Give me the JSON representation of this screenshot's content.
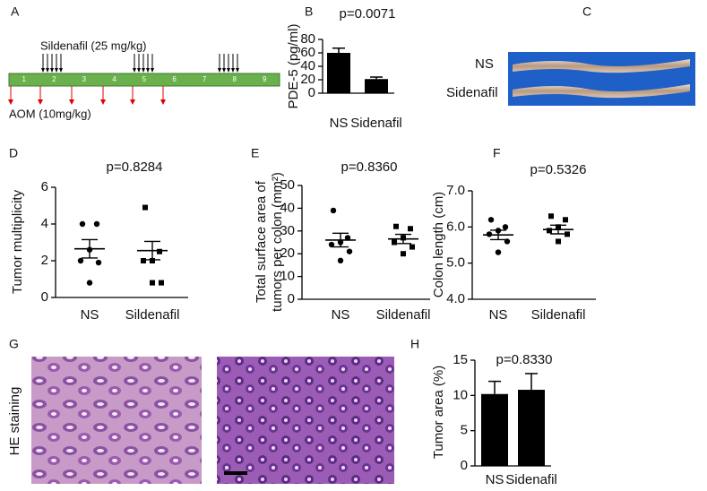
{
  "panel_labels": [
    "A",
    "B",
    "C",
    "D",
    "E",
    "F",
    "G",
    "H"
  ],
  "timeline": {
    "treatment_label": "Sildenafil (25 mg/kg)",
    "carcinogen_label": "AOM (10mg/kg)",
    "weeks": [
      "1",
      "2",
      "3",
      "4",
      "5",
      "6",
      "7",
      "8",
      "9"
    ]
  },
  "photo_c": {
    "labels": [
      "NS",
      "Sidenafil"
    ]
  },
  "photo_g": {
    "label": "HE staining"
  },
  "chart_data": [
    {
      "type": "bar",
      "title": "p=0.0071",
      "ylabel": "PDE-5 (pg/ml)",
      "categories": [
        "NS",
        "Sidenafil"
      ],
      "values": [
        60,
        21
      ],
      "errors": [
        7,
        3
      ],
      "color": "#000000",
      "ylim": [
        0,
        80
      ],
      "yticks": [
        0,
        20,
        40,
        60,
        80
      ]
    },
    {
      "type": "dotplot",
      "title": "p=0.8284",
      "ylabel": "Tumor multiplicity",
      "categories": [
        "NS",
        "Sildenafil"
      ],
      "points": [
        [
          4.0,
          4.0,
          2.6,
          2.0,
          1.9,
          0.8
        ],
        [
          4.9,
          2.5,
          2.0,
          2.0,
          0.8,
          0.8
        ]
      ],
      "means": [
        2.65,
        2.55
      ],
      "errors": [
        0.5,
        0.5
      ],
      "ylim": [
        0,
        6
      ],
      "yticks": [
        0,
        2,
        4,
        6
      ]
    },
    {
      "type": "dotplot",
      "title": "p=0.8360",
      "ylabel": [
        "Total surface area of",
        "tumors per colon (mm²)"
      ],
      "categories": [
        "NS",
        "Sildenafil"
      ],
      "points": [
        [
          39,
          27,
          25,
          24,
          21,
          17
        ],
        [
          32,
          31,
          27,
          25,
          23,
          20
        ]
      ],
      "means": [
        26,
        26.5
      ],
      "errors": [
        3,
        2
      ],
      "ylim": [
        0,
        50
      ],
      "yticks": [
        0,
        10,
        20,
        30,
        40,
        50
      ]
    },
    {
      "type": "dotplot",
      "title": "p=0.5326",
      "ylabel": "Colon length (cm)",
      "categories": [
        "NS",
        "Sildenafil"
      ],
      "points": [
        [
          6.2,
          6.0,
          5.9,
          5.8,
          5.6,
          5.3
        ],
        [
          6.3,
          6.2,
          6.0,
          5.9,
          5.8,
          5.6
        ]
      ],
      "means": [
        5.78,
        5.93
      ],
      "errors": [
        0.13,
        0.12
      ],
      "ylim": [
        4.0,
        7.0
      ],
      "yticks": [
        {
          "value": 4,
          "label": "4.0"
        },
        {
          "value": 5,
          "label": "5.0"
        },
        {
          "value": 6,
          "label": "6.0"
        },
        {
          "value": 7,
          "label": "7.0"
        }
      ]
    },
    {
      "type": "bar",
      "title": "p=0.8330",
      "ylabel": "Tumor area (%)",
      "categories": [
        "NS",
        "Sidenafil"
      ],
      "values": [
        10.2,
        10.8
      ],
      "errors": [
        1.8,
        2.3
      ],
      "color": "#000000",
      "ylim": [
        0,
        15
      ],
      "yticks": [
        0,
        5,
        10,
        15
      ]
    }
  ]
}
